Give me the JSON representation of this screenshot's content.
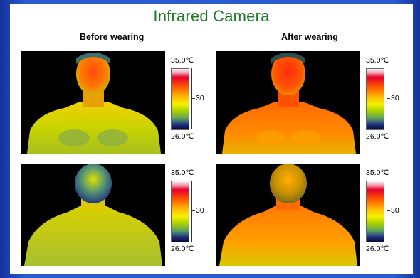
{
  "title": "Infrared Camera",
  "columns": {
    "before": "Before wearing",
    "after": "After wearing"
  },
  "scale": {
    "max": "35.0℃",
    "mid": "30",
    "min": "26.0℃"
  },
  "colors": {
    "title_green": "#1e7a2a",
    "background_blue": "#2a5ad0"
  }
}
